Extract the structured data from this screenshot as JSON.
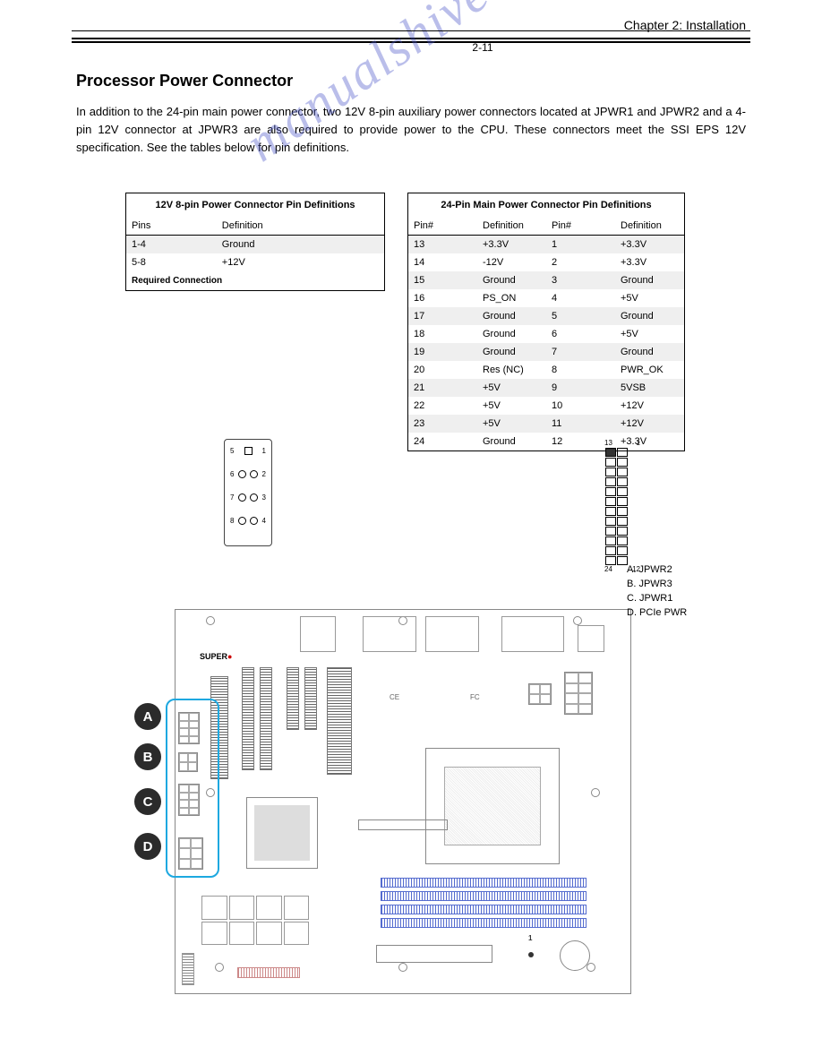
{
  "chapter_header": "Chapter 2: Installation",
  "section_title": "Processor Power Connector",
  "body_text": "In addition to the 24-pin main power connector, two 12V 8-pin auxiliary power connectors located at JPWR1 and JPWR2 and a 4-pin 12V connector at JPWR3 are also required to provide power to the CPU. These connectors meet the SSI EPS 12V specification. See the tables below for pin definitions.",
  "tableA": {
    "caption": "12V 8-pin Power Connector Pin Definitions",
    "cols": [
      "Pins",
      "Definition"
    ],
    "rows": [
      {
        "c": [
          "1-4",
          "Ground"
        ],
        "shade": true
      },
      {
        "c": [
          "5-8",
          "+12V"
        ],
        "shade": false
      }
    ],
    "note": "Required Connection"
  },
  "tableB": {
    "caption": "24-Pin Main Power Connector Pin Definitions",
    "cols": [
      "Pin#",
      "Definition",
      "Pin#",
      "Definition"
    ],
    "rows": [
      {
        "c": [
          "13",
          "+3.3V",
          "1",
          "+3.3V"
        ],
        "shade": true
      },
      {
        "c": [
          "14",
          "-12V",
          "2",
          "+3.3V"
        ],
        "shade": false
      },
      {
        "c": [
          "15",
          "Ground",
          "3",
          "Ground"
        ],
        "shade": true
      },
      {
        "c": [
          "16",
          "PS_ON",
          "4",
          "+5V"
        ],
        "shade": false
      },
      {
        "c": [
          "17",
          "Ground",
          "5",
          "Ground"
        ],
        "shade": true
      },
      {
        "c": [
          "18",
          "Ground",
          "6",
          "+5V"
        ],
        "shade": false
      },
      {
        "c": [
          "19",
          "Ground",
          "7",
          "Ground"
        ],
        "shade": true
      },
      {
        "c": [
          "20",
          "Res (NC)",
          "8",
          "PWR_OK"
        ],
        "shade": false
      },
      {
        "c": [
          "21",
          "+5V",
          "9",
          "5VSB"
        ],
        "shade": true
      },
      {
        "c": [
          "22",
          "+5V",
          "10",
          "+12V"
        ],
        "shade": false
      },
      {
        "c": [
          "23",
          "+5V",
          "11",
          "+12V"
        ],
        "shade": true
      },
      {
        "c": [
          "24",
          "Ground",
          "12",
          "+3.3V"
        ],
        "shade": false
      }
    ]
  },
  "legend": {
    "A": "A. JPWR2",
    "B": "B. JPWR3",
    "C": "C. JPWR1",
    "D": "D. PCIe PWR"
  },
  "jpwr2_labels": {
    "tl": "13",
    "tr": "1",
    "bl": "24",
    "br": "12"
  },
  "jspwr": {
    "left": [
      "5",
      "6",
      "7",
      "8"
    ],
    "right": [
      "1",
      "2",
      "3",
      "4"
    ]
  },
  "marks": [
    "A",
    "B",
    "C",
    "D"
  ],
  "watermark": "manualshive.com",
  "page_number": "2-11"
}
